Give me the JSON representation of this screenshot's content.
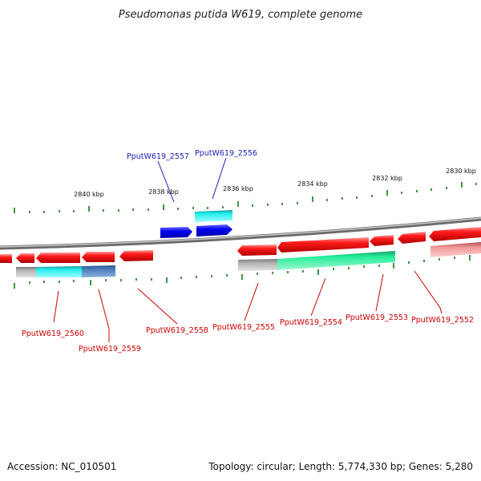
{
  "title": "Pseudomonas putida W619, complete genome",
  "footer": {
    "accession": "Accession: NC_010501",
    "summary": "Topology: circular; Length: 5,774,330 bp; Genes: 5,280"
  },
  "scale_labels": [
    "2840 kbp",
    "2838 kbp",
    "2836 kbp",
    "2834 kbp",
    "2832 kbp",
    "2830 kbp"
  ],
  "colors": {
    "forward_gene": "#0000ee",
    "forward_label": "#1a1ab8",
    "reverse_gene": "#ee0000",
    "reverse_label": "#cc0000",
    "cds_cyan": "#22eeee",
    "cds_green": "#22ee99",
    "cds_steel": "#4d7fbf",
    "cds_pink": "#f29999",
    "gray": "#b4b4b4",
    "tick": "#137a13",
    "backbone": "#888888"
  },
  "genes_forward": [
    {
      "locus": "PputW619_2557"
    },
    {
      "locus": "PputW619_2556"
    }
  ],
  "genes_reverse": [
    {
      "locus": "PputW619_2560"
    },
    {
      "locus": "PputW619_2559"
    },
    {
      "locus": "PputW619_2558"
    },
    {
      "locus": "PputW619_2555"
    },
    {
      "locus": "PputW619_2554"
    },
    {
      "locus": "PputW619_2553"
    },
    {
      "locus": "PputW619_2552"
    }
  ]
}
